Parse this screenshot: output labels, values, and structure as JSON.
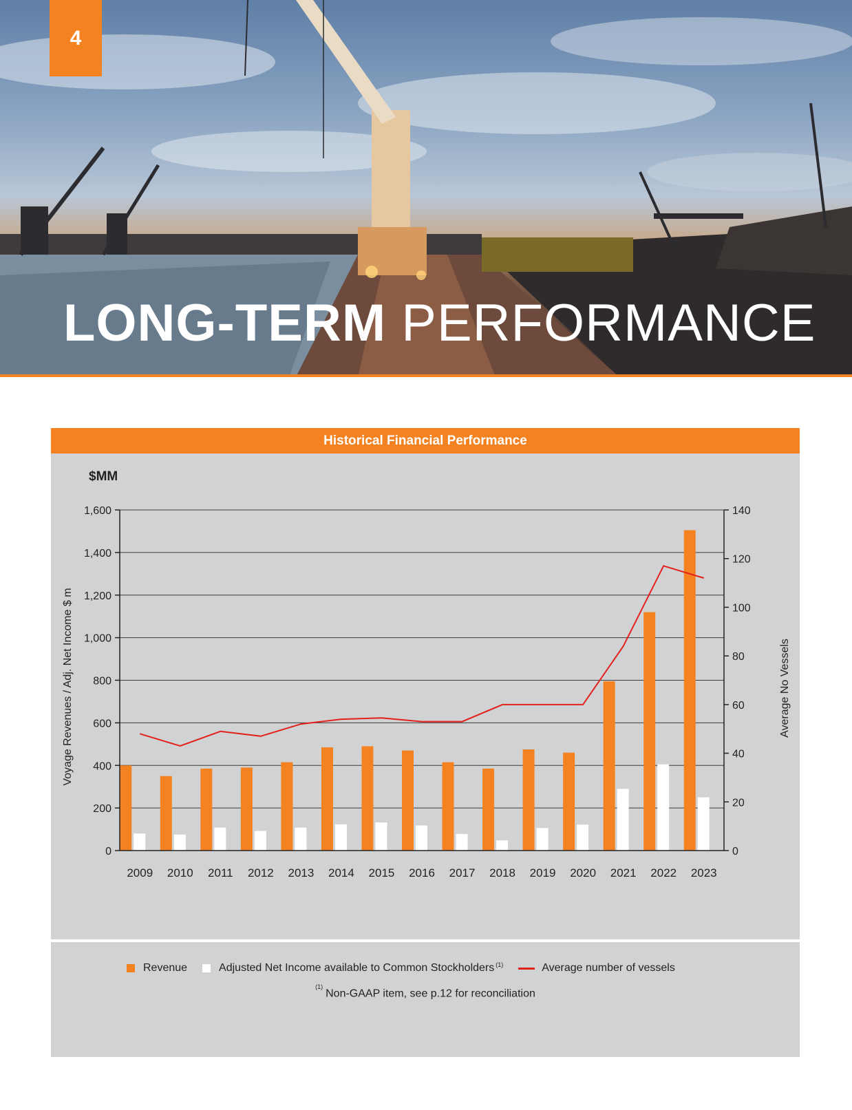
{
  "page": {
    "number": "4"
  },
  "hero": {
    "title_bold": "LONG-TERM",
    "title_light": "PERFORMANCE"
  },
  "panel": {
    "header": "Historical Financial Performance",
    "unit_label": "$MM",
    "footnote_marker": "(1)",
    "footnote": "Non-GAAP item, see p.12 for reconciliation"
  },
  "colors": {
    "accent": "#f58220",
    "revenue": "#f58220",
    "net_income": "#ffffff",
    "vessels": "#e3211c",
    "panel": "#d1d2d4"
  },
  "chart_data": {
    "type": "bar",
    "title": "Historical Financial Performance",
    "categories": [
      "2009",
      "2010",
      "2011",
      "2012",
      "2013",
      "2014",
      "2015",
      "2016",
      "2017",
      "2018",
      "2019",
      "2020",
      "2021",
      "2022",
      "2023"
    ],
    "ylabel": "Voyage Revenues / Adj. Net Income $ m",
    "y2label": "Average No Vessels",
    "ylim": [
      0,
      1600
    ],
    "y_ticks": [
      "0",
      "200",
      "400",
      "600",
      "800",
      "1,000",
      "1,200",
      "1,400",
      "1,600"
    ],
    "y2lim": [
      0,
      140
    ],
    "y2_ticks": [
      "0",
      "20",
      "40",
      "60",
      "80",
      "100",
      "120",
      "140"
    ],
    "grid": true,
    "legend_position": "bottom",
    "series": [
      {
        "name": "Revenue",
        "type": "bar",
        "axis": "left",
        "values": [
          400,
          350,
          385,
          390,
          415,
          485,
          490,
          470,
          415,
          385,
          475,
          460,
          795,
          1120,
          1505
        ]
      },
      {
        "name": "Adjusted Net Income available to Common Stockholders",
        "name_marker": "(1)",
        "type": "bar",
        "axis": "left",
        "values": [
          80,
          75,
          108,
          92,
          108,
          123,
          132,
          118,
          78,
          48,
          106,
          122,
          290,
          405,
          250
        ]
      },
      {
        "name": "Average number of vessels",
        "type": "line",
        "axis": "right",
        "values": [
          48,
          43,
          49,
          47,
          52,
          54,
          54.5,
          53,
          53,
          60,
          60,
          60,
          84,
          117,
          112
        ]
      }
    ]
  }
}
